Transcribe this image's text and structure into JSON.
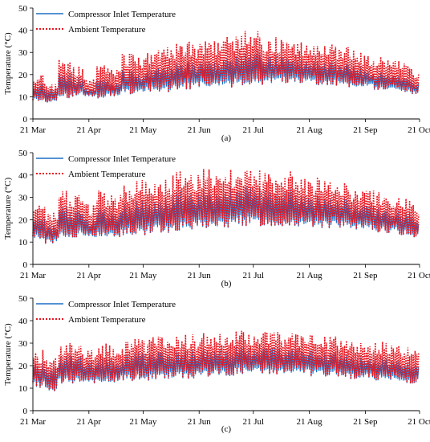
{
  "chart_data": [
    {
      "panel_label": "(a)",
      "type": "line",
      "ylabel": "Temperature (°C)",
      "ylim": [
        0,
        50
      ],
      "yticks": [
        0,
        10,
        20,
        30,
        40,
        50
      ],
      "x_range": [
        "2019-03-21",
        "2019-10-21"
      ],
      "x_tick_labels": [
        "21 Mar",
        "21 Apr",
        "21 May",
        "21 Jun",
        "21 Jul",
        "21 Aug",
        "21 Sep",
        "21 Oct"
      ],
      "legend": "top-left",
      "grid": false,
      "series": [
        {
          "name": "Compressor Inlet Temperature",
          "color": "#1f6fc5",
          "style": "solid",
          "hourly": true,
          "daily_min_by_week": [
            8,
            7,
            9,
            10,
            10,
            9,
            10,
            11,
            11,
            12,
            12,
            13,
            13,
            14,
            14,
            14,
            15,
            15,
            15,
            16,
            16,
            16,
            15,
            15,
            15,
            14,
            14,
            13,
            13,
            12,
            11
          ],
          "daily_max_by_week": [
            16,
            14,
            21,
            19,
            14,
            19,
            17,
            22,
            21,
            23,
            24,
            25,
            26,
            27,
            26,
            28,
            30,
            32,
            30,
            29,
            28,
            27,
            27,
            26,
            25,
            24,
            22,
            21,
            20,
            19,
            17
          ]
        },
        {
          "name": "Ambient Temperature",
          "color": "#e8141e",
          "style": "dotted",
          "hourly": true,
          "daily_min_by_week": [
            8,
            7,
            9,
            10,
            10,
            9,
            10,
            11,
            11,
            12,
            12,
            13,
            13,
            14,
            14,
            14,
            15,
            15,
            15,
            16,
            16,
            16,
            15,
            15,
            15,
            14,
            14,
            13,
            13,
            12,
            11
          ],
          "daily_max_by_week": [
            20,
            16,
            27,
            24,
            19,
            26,
            24,
            30,
            29,
            31,
            33,
            34,
            35,
            37,
            36,
            38,
            40,
            41,
            38,
            37,
            36,
            35,
            35,
            34,
            33,
            31,
            29,
            28,
            27,
            26,
            22
          ]
        }
      ]
    },
    {
      "panel_label": "(b)",
      "type": "line",
      "ylabel": "Temperature (°C)",
      "ylim": [
        0,
        50
      ],
      "yticks": [
        0,
        10,
        20,
        30,
        40,
        50
      ],
      "x_range": [
        "2019-03-21",
        "2019-10-21"
      ],
      "x_tick_labels": [
        "21 Mar",
        "21 Apr",
        "21 May",
        "21 Jun",
        "21 Jul",
        "21 Aug",
        "21 Sep",
        "21 Oct"
      ],
      "legend": "top-left",
      "grid": false,
      "series": [
        {
          "name": "Compressor Inlet Temperature",
          "color": "#1f6fc5",
          "style": "solid",
          "hourly": true,
          "daily_min_by_week": [
            11,
            9,
            11,
            12,
            12,
            11,
            12,
            13,
            13,
            14,
            14,
            15,
            15,
            16,
            16,
            16,
            17,
            17,
            17,
            17,
            17,
            16,
            16,
            16,
            16,
            15,
            15,
            14,
            14,
            13,
            12
          ],
          "daily_max_by_week": [
            22,
            18,
            26,
            25,
            20,
            25,
            24,
            28,
            29,
            30,
            31,
            33,
            33,
            34,
            33,
            35,
            37,
            36,
            33,
            33,
            34,
            31,
            31,
            30,
            30,
            28,
            27,
            26,
            25,
            24,
            21
          ]
        },
        {
          "name": "Ambient Temperature",
          "color": "#e8141e",
          "style": "dotted",
          "hourly": true,
          "daily_min_by_week": [
            11,
            9,
            11,
            12,
            12,
            11,
            12,
            13,
            13,
            14,
            14,
            15,
            15,
            16,
            16,
            16,
            17,
            17,
            17,
            17,
            17,
            16,
            16,
            16,
            16,
            15,
            15,
            14,
            14,
            13,
            12
          ],
          "daily_max_by_week": [
            28,
            24,
            33,
            32,
            27,
            33,
            32,
            36,
            38,
            39,
            40,
            42,
            42,
            43,
            42,
            43,
            45,
            44,
            41,
            40,
            42,
            39,
            39,
            38,
            37,
            35,
            34,
            33,
            31,
            30,
            27
          ]
        }
      ]
    },
    {
      "panel_label": "(c)",
      "type": "line",
      "ylabel": "Temperature (°C)",
      "ylim": [
        0,
        50
      ],
      "yticks": [
        0,
        10,
        20,
        30,
        40,
        50
      ],
      "x_range": [
        "2019-03-21",
        "2019-10-21"
      ],
      "x_tick_labels": [
        "21 Mar",
        "21 Apr",
        "21 May",
        "21 Jun",
        "21 Jul",
        "21 Aug",
        "21 Sep",
        "21 Oct"
      ],
      "legend": "top-left",
      "grid": false,
      "series": [
        {
          "name": "Compressor Inlet Temperature",
          "color": "#1f6fc5",
          "style": "solid",
          "hourly": true,
          "daily_min_by_week": [
            10,
            8,
            11,
            12,
            12,
            11,
            12,
            13,
            13,
            13,
            14,
            14,
            14,
            15,
            15,
            15,
            16,
            16,
            16,
            16,
            16,
            16,
            15,
            15,
            15,
            14,
            14,
            13,
            13,
            12,
            12
          ],
          "daily_max_by_week": [
            22,
            20,
            25,
            25,
            22,
            24,
            23,
            25,
            26,
            26,
            27,
            27,
            27,
            28,
            28,
            28,
            29,
            29,
            28,
            28,
            28,
            27,
            27,
            26,
            26,
            25,
            24,
            24,
            23,
            22,
            21
          ]
        },
        {
          "name": "Ambient Temperature",
          "color": "#e8141e",
          "style": "dotted",
          "hourly": true,
          "daily_min_by_week": [
            10,
            8,
            11,
            12,
            12,
            11,
            12,
            13,
            13,
            13,
            14,
            14,
            14,
            15,
            15,
            15,
            16,
            16,
            16,
            16,
            16,
            16,
            15,
            15,
            15,
            14,
            14,
            13,
            13,
            12,
            12
          ],
          "daily_max_by_week": [
            27,
            24,
            30,
            30,
            27,
            30,
            29,
            31,
            32,
            33,
            34,
            34,
            34,
            35,
            35,
            35,
            36,
            36,
            35,
            35,
            35,
            34,
            34,
            33,
            33,
            32,
            31,
            31,
            30,
            29,
            28
          ]
        }
      ]
    }
  ]
}
